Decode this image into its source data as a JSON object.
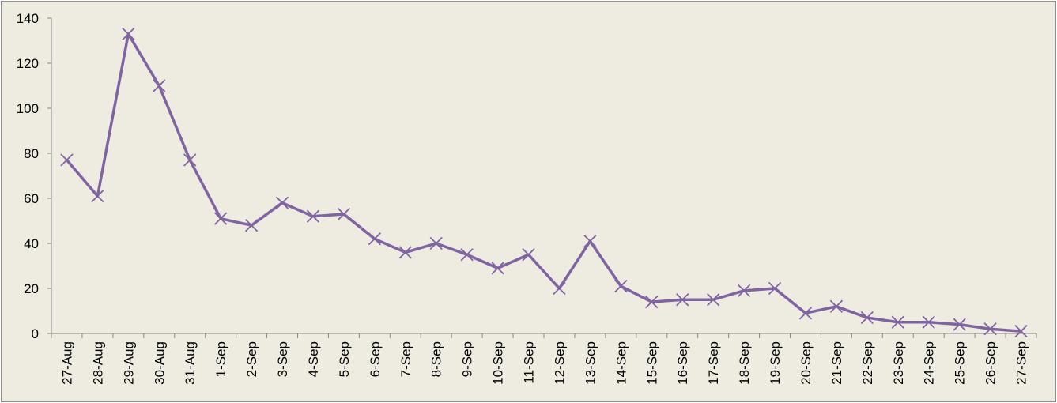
{
  "chart_data": {
    "type": "line",
    "title": "",
    "xlabel": "",
    "ylabel": "",
    "x": [
      "27-Aug",
      "28-Aug",
      "29-Aug",
      "30-Aug",
      "31-Aug",
      "1-Sep",
      "2-Sep",
      "3-Sep",
      "4-Sep",
      "5-Sep",
      "6-Sep",
      "7-Sep",
      "8-Sep",
      "9-Sep",
      "10-Sep",
      "11-Sep",
      "12-Sep",
      "13-Sep",
      "14-Sep",
      "15-Sep",
      "16-Sep",
      "17-Sep",
      "18-Sep",
      "19-Sep",
      "20-Sep",
      "21-Sep",
      "22-Sep",
      "23-Sep",
      "24-Sep",
      "25-Sep",
      "26-Sep",
      "27-Sep"
    ],
    "series": [
      {
        "values": [
          77,
          61,
          133,
          110,
          77,
          51,
          48,
          58,
          52,
          53,
          42,
          36,
          40,
          35,
          29,
          35,
          20,
          41,
          21,
          14,
          15,
          15,
          19,
          20,
          9,
          12,
          7,
          5,
          5,
          4,
          2,
          1
        ],
        "color": "#8064a2",
        "marker": "x"
      }
    ],
    "ylim": [
      0,
      140
    ],
    "yticks": [
      0,
      20,
      40,
      60,
      80,
      100,
      120,
      140
    ],
    "grid": false,
    "legend": "none"
  }
}
